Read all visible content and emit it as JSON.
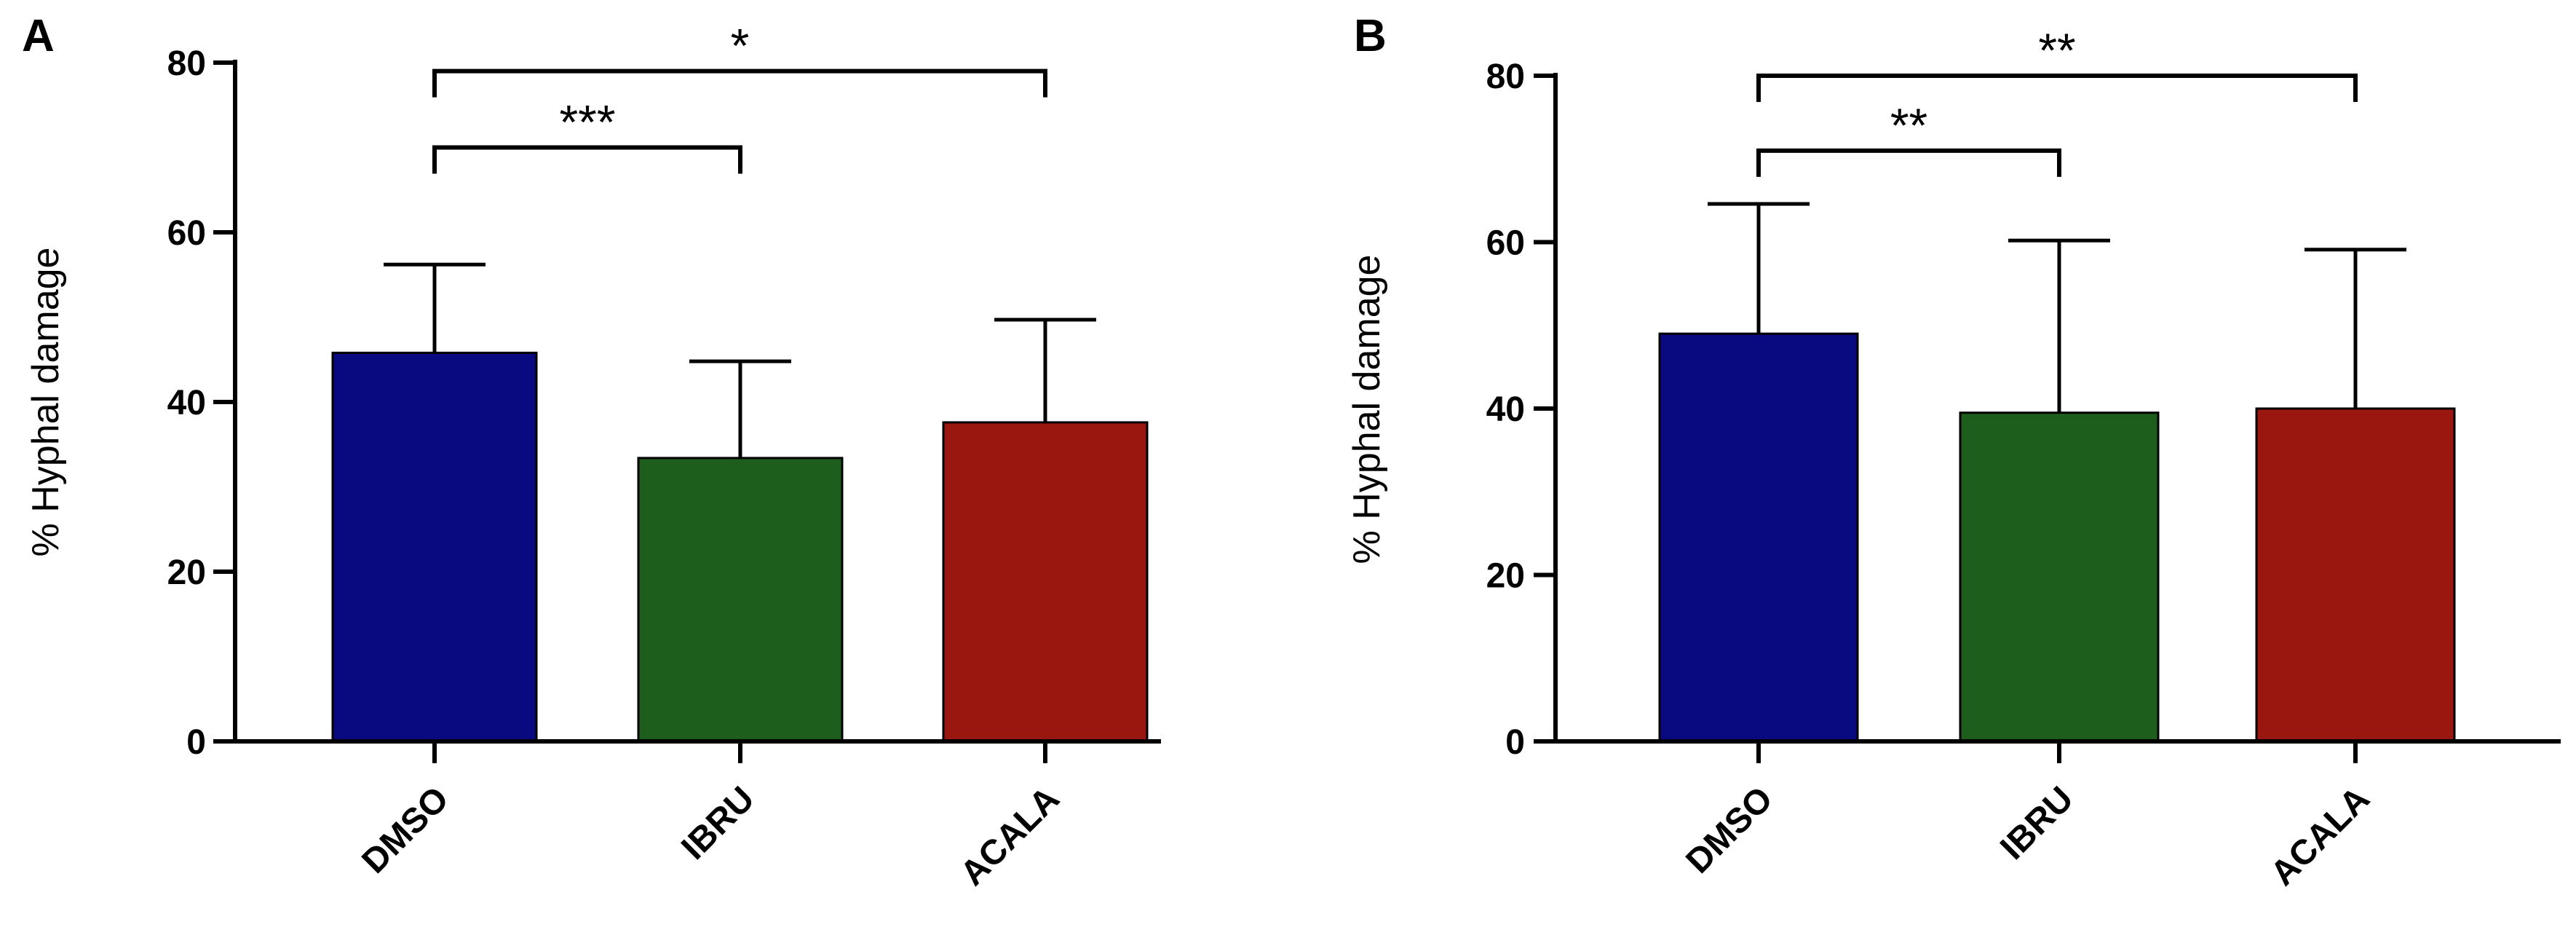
{
  "chart_data": [
    {
      "panel": "A",
      "type": "bar",
      "categories": [
        "DMSO",
        "IBRU",
        "ACALA"
      ],
      "values": [
        45.8,
        33.4,
        37.6
      ],
      "errors": [
        10.4,
        11.4,
        12.1
      ],
      "colors": [
        "#0a0a80",
        "#1e5e1c",
        "#9a1710"
      ],
      "ylabel": "% Hyphal damage",
      "xlabel": "",
      "ylim": [
        0,
        80
      ],
      "yticks": [
        "0",
        "20",
        "40",
        "60",
        "80"
      ],
      "comparisons": [
        {
          "from": 0,
          "to": 1,
          "label": "***",
          "y": 70
        },
        {
          "from": 0,
          "to": 2,
          "label": "*",
          "y": 79
        }
      ]
    },
    {
      "panel": "B",
      "type": "bar",
      "categories": [
        "DMSO",
        "IBRU",
        "ACALA"
      ],
      "values": [
        49,
        39.5,
        40
      ],
      "errors": [
        15.6,
        20.7,
        19.1
      ],
      "colors": [
        "#0a0a80",
        "#1e5e1c",
        "#9a1710"
      ],
      "ylabel": "% Hyphal damage",
      "xlabel": "",
      "ylim": [
        0,
        80
      ],
      "yticks": [
        "0",
        "20",
        "40",
        "60",
        "80"
      ],
      "comparisons": [
        {
          "from": 0,
          "to": 1,
          "label": "**",
          "y": 71
        },
        {
          "from": 0,
          "to": 2,
          "label": "**",
          "y": 80
        }
      ]
    }
  ]
}
